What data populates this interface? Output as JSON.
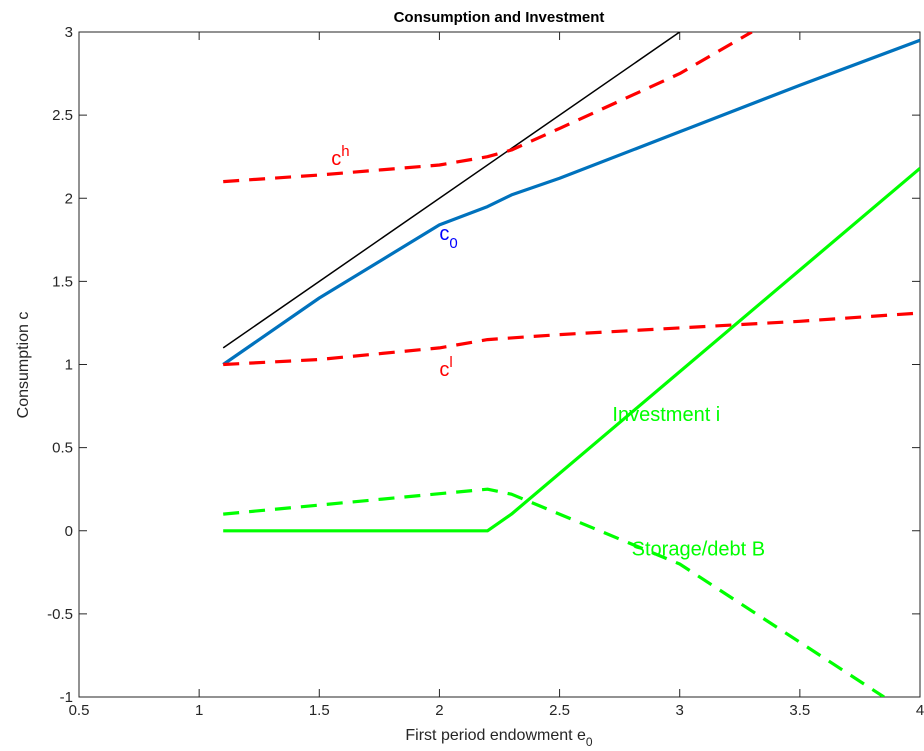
{
  "chart_data": {
    "type": "line",
    "title": "Consumption and Investment",
    "xlabel": "First period endowment e",
    "xlabel_subscript": "0",
    "ylabel": "Consumption c",
    "xlim": [
      0.5,
      4
    ],
    "ylim": [
      -1,
      3
    ],
    "xticks": [
      0.5,
      1,
      1.5,
      2,
      2.5,
      3,
      3.5,
      4
    ],
    "yticks": [
      -1,
      -0.5,
      0,
      0.5,
      1,
      1.5,
      2,
      2.5,
      3
    ],
    "xtick_labels": [
      "0.5",
      "1",
      "1.5",
      "2",
      "2.5",
      "3",
      "3.5",
      "4"
    ],
    "ytick_labels": [
      "-1",
      "-0.5",
      "0",
      "0.5",
      "1",
      "1.5",
      "2",
      "2.5",
      "3"
    ],
    "grid": false,
    "series": [
      {
        "style": "solid-thin",
        "color": "#000000",
        "x": [
          1.1,
          3.0
        ],
        "y": [
          1.1,
          3.0
        ]
      },
      {
        "name": "c",
        "name_subscript": "0",
        "style": "solid",
        "color": "#0072BD",
        "x": [
          1.1,
          1.5,
          2.0,
          2.2,
          2.3,
          2.5,
          3.0,
          3.5,
          4.0
        ],
        "y": [
          1.0,
          1.4,
          1.84,
          1.95,
          2.02,
          2.12,
          2.4,
          2.68,
          2.95
        ]
      },
      {
        "name": "c",
        "name_superscript": "h",
        "style": "dashed",
        "color": "#FF0000",
        "x": [
          1.1,
          1.5,
          2.0,
          2.2,
          2.3,
          2.5,
          3.0,
          3.3
        ],
        "y": [
          2.1,
          2.14,
          2.2,
          2.25,
          2.29,
          2.42,
          2.75,
          3.0
        ]
      },
      {
        "name": "c",
        "name_superscript": "l",
        "style": "dashed",
        "color": "#FF0000",
        "x": [
          1.1,
          1.5,
          2.0,
          2.2,
          2.5,
          3.0,
          3.5,
          4.0
        ],
        "y": [
          1.0,
          1.03,
          1.1,
          1.15,
          1.18,
          1.22,
          1.26,
          1.31
        ]
      },
      {
        "name": "Investment i",
        "style": "solid",
        "color": "#00FF00",
        "x": [
          1.1,
          2.2,
          2.3,
          4.0
        ],
        "y": [
          0.0,
          0.0,
          0.1,
          2.18
        ]
      },
      {
        "name": "Storage/debt B",
        "style": "dashed",
        "color": "#00FF00",
        "x": [
          1.1,
          2.2,
          2.3,
          3.0,
          3.85
        ],
        "y": [
          0.1,
          0.25,
          0.22,
          -0.2,
          -1.0
        ]
      }
    ],
    "annotations": [
      {
        "base": "c",
        "sup": "h",
        "sub": "",
        "color": "#FF0000",
        "x": 1.55,
        "y": 2.2
      },
      {
        "base": "c",
        "sup": "",
        "sub": "0",
        "color": "#0000FF",
        "x": 2.0,
        "y": 1.75
      },
      {
        "base": "c",
        "sup": "l",
        "sub": "",
        "color": "#FF0000",
        "x": 2.0,
        "y": 0.93
      },
      {
        "base": "Investment i",
        "sup": "",
        "sub": "",
        "color": "#00FF00",
        "x": 2.72,
        "y": 0.66
      },
      {
        "base": "Storage/debt B",
        "sup": "",
        "sub": "",
        "color": "#00FF00",
        "x": 2.8,
        "y": -0.15
      }
    ]
  }
}
